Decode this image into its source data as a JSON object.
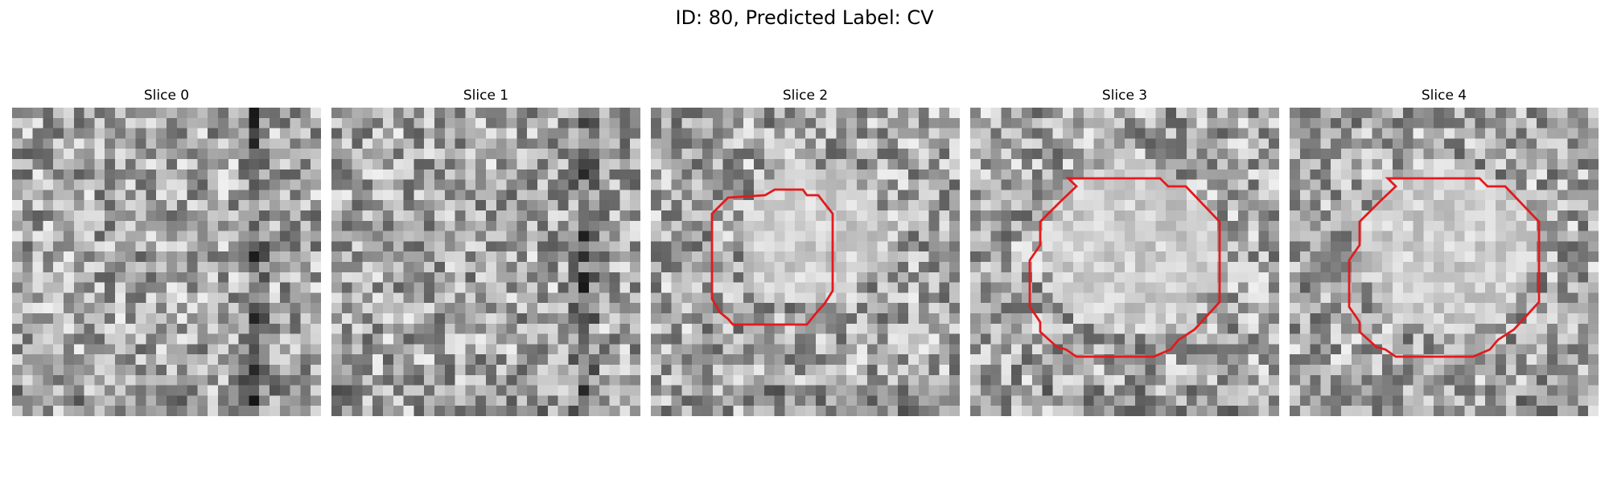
{
  "figure": {
    "title": "ID: 80, Predicted Label: CV",
    "grid_size": 30,
    "contour_color": "#e31a1c",
    "panels": [
      {
        "title": "Slice 0",
        "seed": 11,
        "has_contour": false,
        "dark_column_at": 23,
        "blob": null
      },
      {
        "title": "Slice 1",
        "seed": 23,
        "has_contour": false,
        "dark_column_at": 24,
        "blob": null
      },
      {
        "title": "Slice 2",
        "seed": 37,
        "has_contour": true,
        "dark_column_at": null,
        "blob": {
          "cx": 15,
          "cy": 12,
          "r": 6.8
        }
      },
      {
        "title": "Slice 3",
        "seed": 41,
        "has_contour": true,
        "dark_column_at": null,
        "blob": {
          "cx": 15,
          "cy": 13,
          "r": 8.5
        }
      },
      {
        "title": "Slice 4",
        "seed": 53,
        "has_contour": true,
        "dark_column_at": null,
        "blob": {
          "cx": 15,
          "cy": 13,
          "r": 8.5
        }
      }
    ]
  }
}
